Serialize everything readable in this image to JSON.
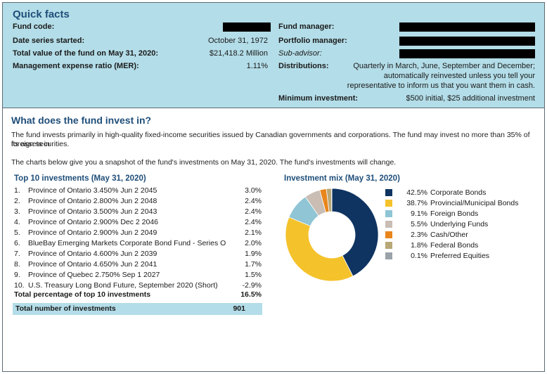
{
  "quick_facts": {
    "title": "Quick facts",
    "fund_code_label": "Fund code:",
    "date_started_label": "Date series started:",
    "date_started_value": "October 31, 1972",
    "total_value_label": "Total value of the fund on May 31, 2020:",
    "total_value_value": "$21,418.2 Million",
    "mer_label": "Management expense ratio (MER):",
    "mer_value": "1.11%",
    "fund_manager_label": "Fund manager:",
    "portfolio_manager_label": "Portfolio manager:",
    "sub_advisor_label": "Sub-advisor:",
    "distributions_label": "Distributions:",
    "distributions_line1": "Quarterly in March, June, September and December;",
    "distributions_line2": "automatically reinvested unless you tell your",
    "distributions_line3": "representative to inform us that you want them in cash.",
    "min_investment_label": "Minimum investment:",
    "min_investment_value": "$500 initial, $25 additional investment"
  },
  "invest": {
    "title": "What does the fund invest in?",
    "para1_line1": "The fund invests primarily in high-quality fixed-income securities issued by Canadian governments and corporations. The fund may invest no more than 35% of its assets in",
    "para1_line2": "foreign securities.",
    "para2": "The charts below give you a snapshot of the fund's investments on May 31, 2020. The fund's investments will change."
  },
  "top10": {
    "title": "Top 10 investments (May 31, 2020)",
    "items": [
      {
        "num": "1.",
        "name": "Province of Ontario 3.450% Jun 2 2045",
        "pct": "3.0%"
      },
      {
        "num": "2.",
        "name": "Province of Ontario 2.800% Jun 2 2048",
        "pct": "2.4%"
      },
      {
        "num": "3.",
        "name": "Province of Ontario 3.500% Jun 2 2043",
        "pct": "2.4%"
      },
      {
        "num": "4.",
        "name": "Province of Ontario 2.900% Dec 2 2046",
        "pct": "2.4%"
      },
      {
        "num": "5.",
        "name": "Province of Ontario 2.900% Jun 2 2049",
        "pct": "2.1%"
      },
      {
        "num": "6.",
        "name": "BlueBay Emerging Markets Corporate Bond Fund - Series O",
        "pct": "2.0%"
      },
      {
        "num": "7.",
        "name": "Province of Ontario 4.600% Jun 2 2039",
        "pct": "1.9%"
      },
      {
        "num": "8.",
        "name": "Province of Ontario 4.650% Jun 2 2041",
        "pct": "1.7%"
      },
      {
        "num": "9.",
        "name": "Province of Quebec 2.750% Sep 1 2027",
        "pct": "1.5%"
      },
      {
        "num": "10.",
        "name": "U.S. Treasury Long Bond Future, September 2020 (Short)",
        "pct": "-2.9%"
      }
    ],
    "total_pct_label": "Total percentage of top 10 investments",
    "total_pct_value": "16.5%",
    "total_count_label": "Total number of investments",
    "total_count_value": "901"
  },
  "mix": {
    "title": "Investment mix (May 31, 2020)",
    "items": [
      {
        "pct": "42.5%",
        "name": "Corporate Bonds",
        "color": "#0f3462"
      },
      {
        "pct": "38.7%",
        "name": "Provincial/Municipal Bonds",
        "color": "#f4c22b"
      },
      {
        "pct": "9.1%",
        "name": "Foreign Bonds",
        "color": "#8fc5d4"
      },
      {
        "pct": "5.5%",
        "name": "Underlying Funds",
        "color": "#c9bdb4"
      },
      {
        "pct": "2.3%",
        "name": "Cash/Other",
        "color": "#e8861c"
      },
      {
        "pct": "1.8%",
        "name": "Federal Bonds",
        "color": "#b8a877"
      },
      {
        "pct": "0.1%",
        "name": "Preferred Equities",
        "color": "#9aa3a8"
      }
    ]
  },
  "chart_data": {
    "type": "pie",
    "title": "Investment mix (May 31, 2020)",
    "categories": [
      "Corporate Bonds",
      "Provincial/Municipal Bonds",
      "Foreign Bonds",
      "Underlying Funds",
      "Cash/Other",
      "Federal Bonds",
      "Preferred Equities"
    ],
    "values": [
      42.5,
      38.7,
      9.1,
      5.5,
      2.3,
      1.8,
      0.1
    ],
    "colors": [
      "#0f3462",
      "#f4c22b",
      "#8fc5d4",
      "#c9bdb4",
      "#e8861c",
      "#b8a877",
      "#9aa3a8"
    ],
    "donut": true,
    "legend_position": "right"
  }
}
